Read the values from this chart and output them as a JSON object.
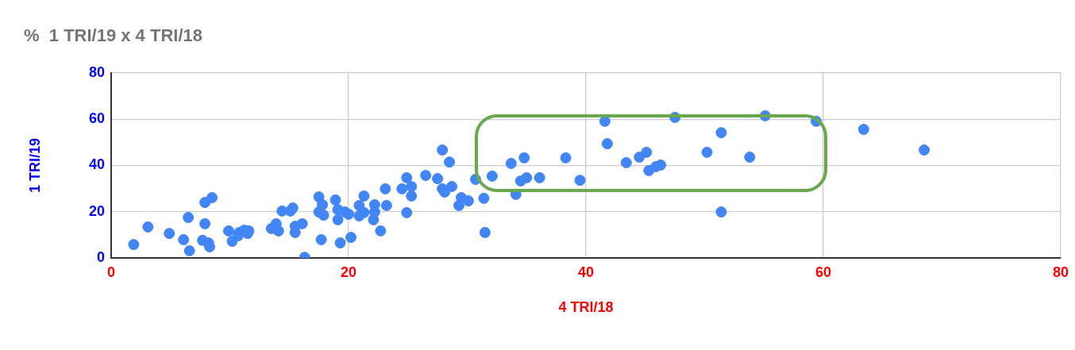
{
  "chart_data": {
    "type": "scatter",
    "title": "%  1 TRI/19 x 4 TRI/18",
    "xlabel": "4 TRI/18",
    "ylabel": "1 TRI/19",
    "x": [
      1.9,
      3.1,
      4.9,
      6.1,
      6.5,
      6.6,
      7.9,
      8.5,
      7.9,
      7.7,
      8.2,
      8.3,
      9.9,
      10.2,
      10.7,
      10.8,
      11.2,
      11.5,
      11.6,
      13.5,
      13.9,
      14.1,
      14.4,
      15.1,
      15.3,
      15.5,
      15.5,
      16.1,
      16.3,
      17.5,
      17.5,
      17.8,
      17.9,
      17.7,
      18.9,
      19.1,
      19.1,
      19.3,
      19.7,
      20.0,
      20.2,
      20.9,
      20.9,
      21.3,
      21.3,
      22.1,
      22.2,
      22.2,
      22.7,
      23.1,
      23.2,
      24.5,
      24.9,
      24.9,
      25.3,
      25.3,
      26.5,
      27.5,
      27.9,
      27.9,
      28.1,
      28.5,
      28.7,
      29.3,
      29.5,
      30.1,
      30.7,
      31.4,
      31.5,
      32.1,
      33.7,
      34.1,
      34.5,
      34.8,
      35.0,
      36.1,
      38.3,
      39.5,
      41.8,
      41.6,
      43.4,
      44.5,
      45.1,
      45.3,
      45.9,
      46.3,
      47.5,
      50.2,
      51.4,
      51.4,
      53.8,
      55.1,
      59.4,
      63.4,
      68.5
    ],
    "values": [
      5.8,
      13.4,
      10.6,
      7.9,
      17.5,
      3.1,
      24.0,
      26.1,
      14.8,
      7.6,
      6.5,
      4.8,
      11.7,
      7.2,
      9.6,
      11.0,
      12.0,
      10.6,
      11.7,
      12.7,
      14.8,
      11.7,
      20.3,
      20.3,
      21.6,
      11.0,
      13.7,
      14.8,
      0.3,
      26.4,
      19.9,
      23.0,
      18.5,
      7.9,
      25.1,
      20.9,
      16.5,
      6.5,
      19.9,
      18.9,
      8.9,
      22.7,
      18.2,
      26.8,
      19.6,
      16.5,
      23.0,
      19.9,
      11.7,
      29.9,
      22.7,
      29.9,
      34.7,
      19.6,
      30.9,
      26.8,
      35.7,
      34.3,
      46.7,
      29.9,
      28.5,
      41.5,
      30.9,
      22.7,
      26.1,
      24.7,
      34.0,
      25.8,
      11.0,
      35.4,
      40.9,
      27.5,
      33.3,
      43.3,
      34.7,
      34.7,
      43.3,
      33.6,
      49.4,
      59.1,
      41.2,
      43.6,
      45.7,
      37.8,
      39.5,
      40.2,
      60.8,
      45.7,
      54.2,
      19.9,
      43.6,
      61.5,
      59.1,
      55.6,
      46.7
    ],
    "color": "#4285f4",
    "marker": "circle",
    "xlim": [
      0,
      80
    ],
    "ylim": [
      0,
      80
    ],
    "xticks": [
      0,
      20,
      40,
      60,
      80
    ],
    "yticks": [
      0,
      20,
      40,
      60,
      80
    ],
    "grid": true
  }
}
